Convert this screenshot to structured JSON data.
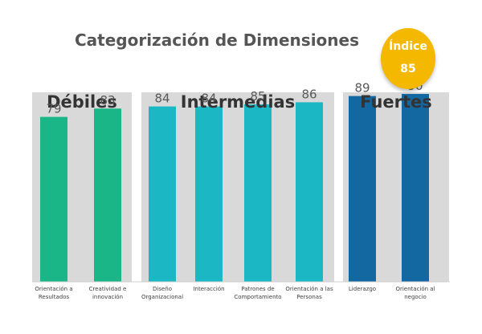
{
  "title": "Categorización de Dimensiones",
  "badge": {
    "label": "Índice",
    "value": "85",
    "color": "#f5b800"
  },
  "chart_data": {
    "type": "bar",
    "title": "Categorización de Dimensiones",
    "ylim": [
      0,
      100
    ],
    "grid": false,
    "groups": [
      {
        "name": "Débiles",
        "color": "#1ab688",
        "categories": [
          [
            "Orientación a",
            "Resultados"
          ],
          [
            "Creatividad e",
            "innovación"
          ]
        ],
        "values": [
          79,
          83
        ]
      },
      {
        "name": "Intermedias",
        "color": "#1bb7c5",
        "categories": [
          [
            "Diseño",
            "Organizacional"
          ],
          [
            "Interacción"
          ],
          [
            "Patrones de",
            "Comportamiento"
          ],
          [
            "Orientación a las",
            "Personas"
          ]
        ],
        "values": [
          84,
          84,
          85,
          86
        ]
      },
      {
        "name": "Fuertes",
        "color": "#1468a2",
        "categories": [
          [
            "Liderazgo"
          ],
          [
            "Orientación al",
            "negocio"
          ]
        ],
        "values": [
          89,
          90
        ]
      }
    ]
  }
}
